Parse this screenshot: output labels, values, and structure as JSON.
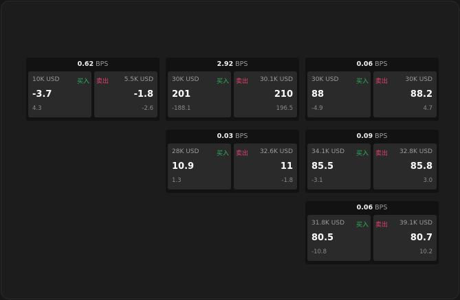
{
  "unit": "BPS",
  "buy_label": "买入",
  "sell_label": "卖出",
  "colors": {
    "buy": "#2bb15e",
    "sell": "#e0436b"
  },
  "panels": [
    {
      "spread": "0.62",
      "buy": {
        "size": "10K USD",
        "price": "-3.7",
        "change": "4.3"
      },
      "sell": {
        "size": "5.5K USD",
        "price": "-1.8",
        "change": "-2.6"
      }
    },
    {
      "spread": "2.92",
      "buy": {
        "size": "30K USD",
        "price": "201",
        "change": "-188.1"
      },
      "sell": {
        "size": "30.1K USD",
        "price": "210",
        "change": "196.5"
      }
    },
    {
      "spread": "0.06",
      "buy": {
        "size": "30K USD",
        "price": "88",
        "change": "-4.9"
      },
      "sell": {
        "size": "30K USD",
        "price": "88.2",
        "change": "4.7"
      }
    },
    {
      "spread": "0.03",
      "buy": {
        "size": "28K USD",
        "price": "10.9",
        "change": "1.3"
      },
      "sell": {
        "size": "32.6K USD",
        "price": "11",
        "change": "-1.8"
      }
    },
    {
      "spread": "0.09",
      "buy": {
        "size": "34.1K USD",
        "price": "85.5",
        "change": "-3.1"
      },
      "sell": {
        "size": "32.8K USD",
        "price": "85.8",
        "change": "3.0"
      }
    },
    {
      "spread": "0.06",
      "buy": {
        "size": "31.8K USD",
        "price": "80.5",
        "change": "-10.8"
      },
      "sell": {
        "size": "39.1K USD",
        "price": "80.7",
        "change": "10.2"
      }
    }
  ]
}
